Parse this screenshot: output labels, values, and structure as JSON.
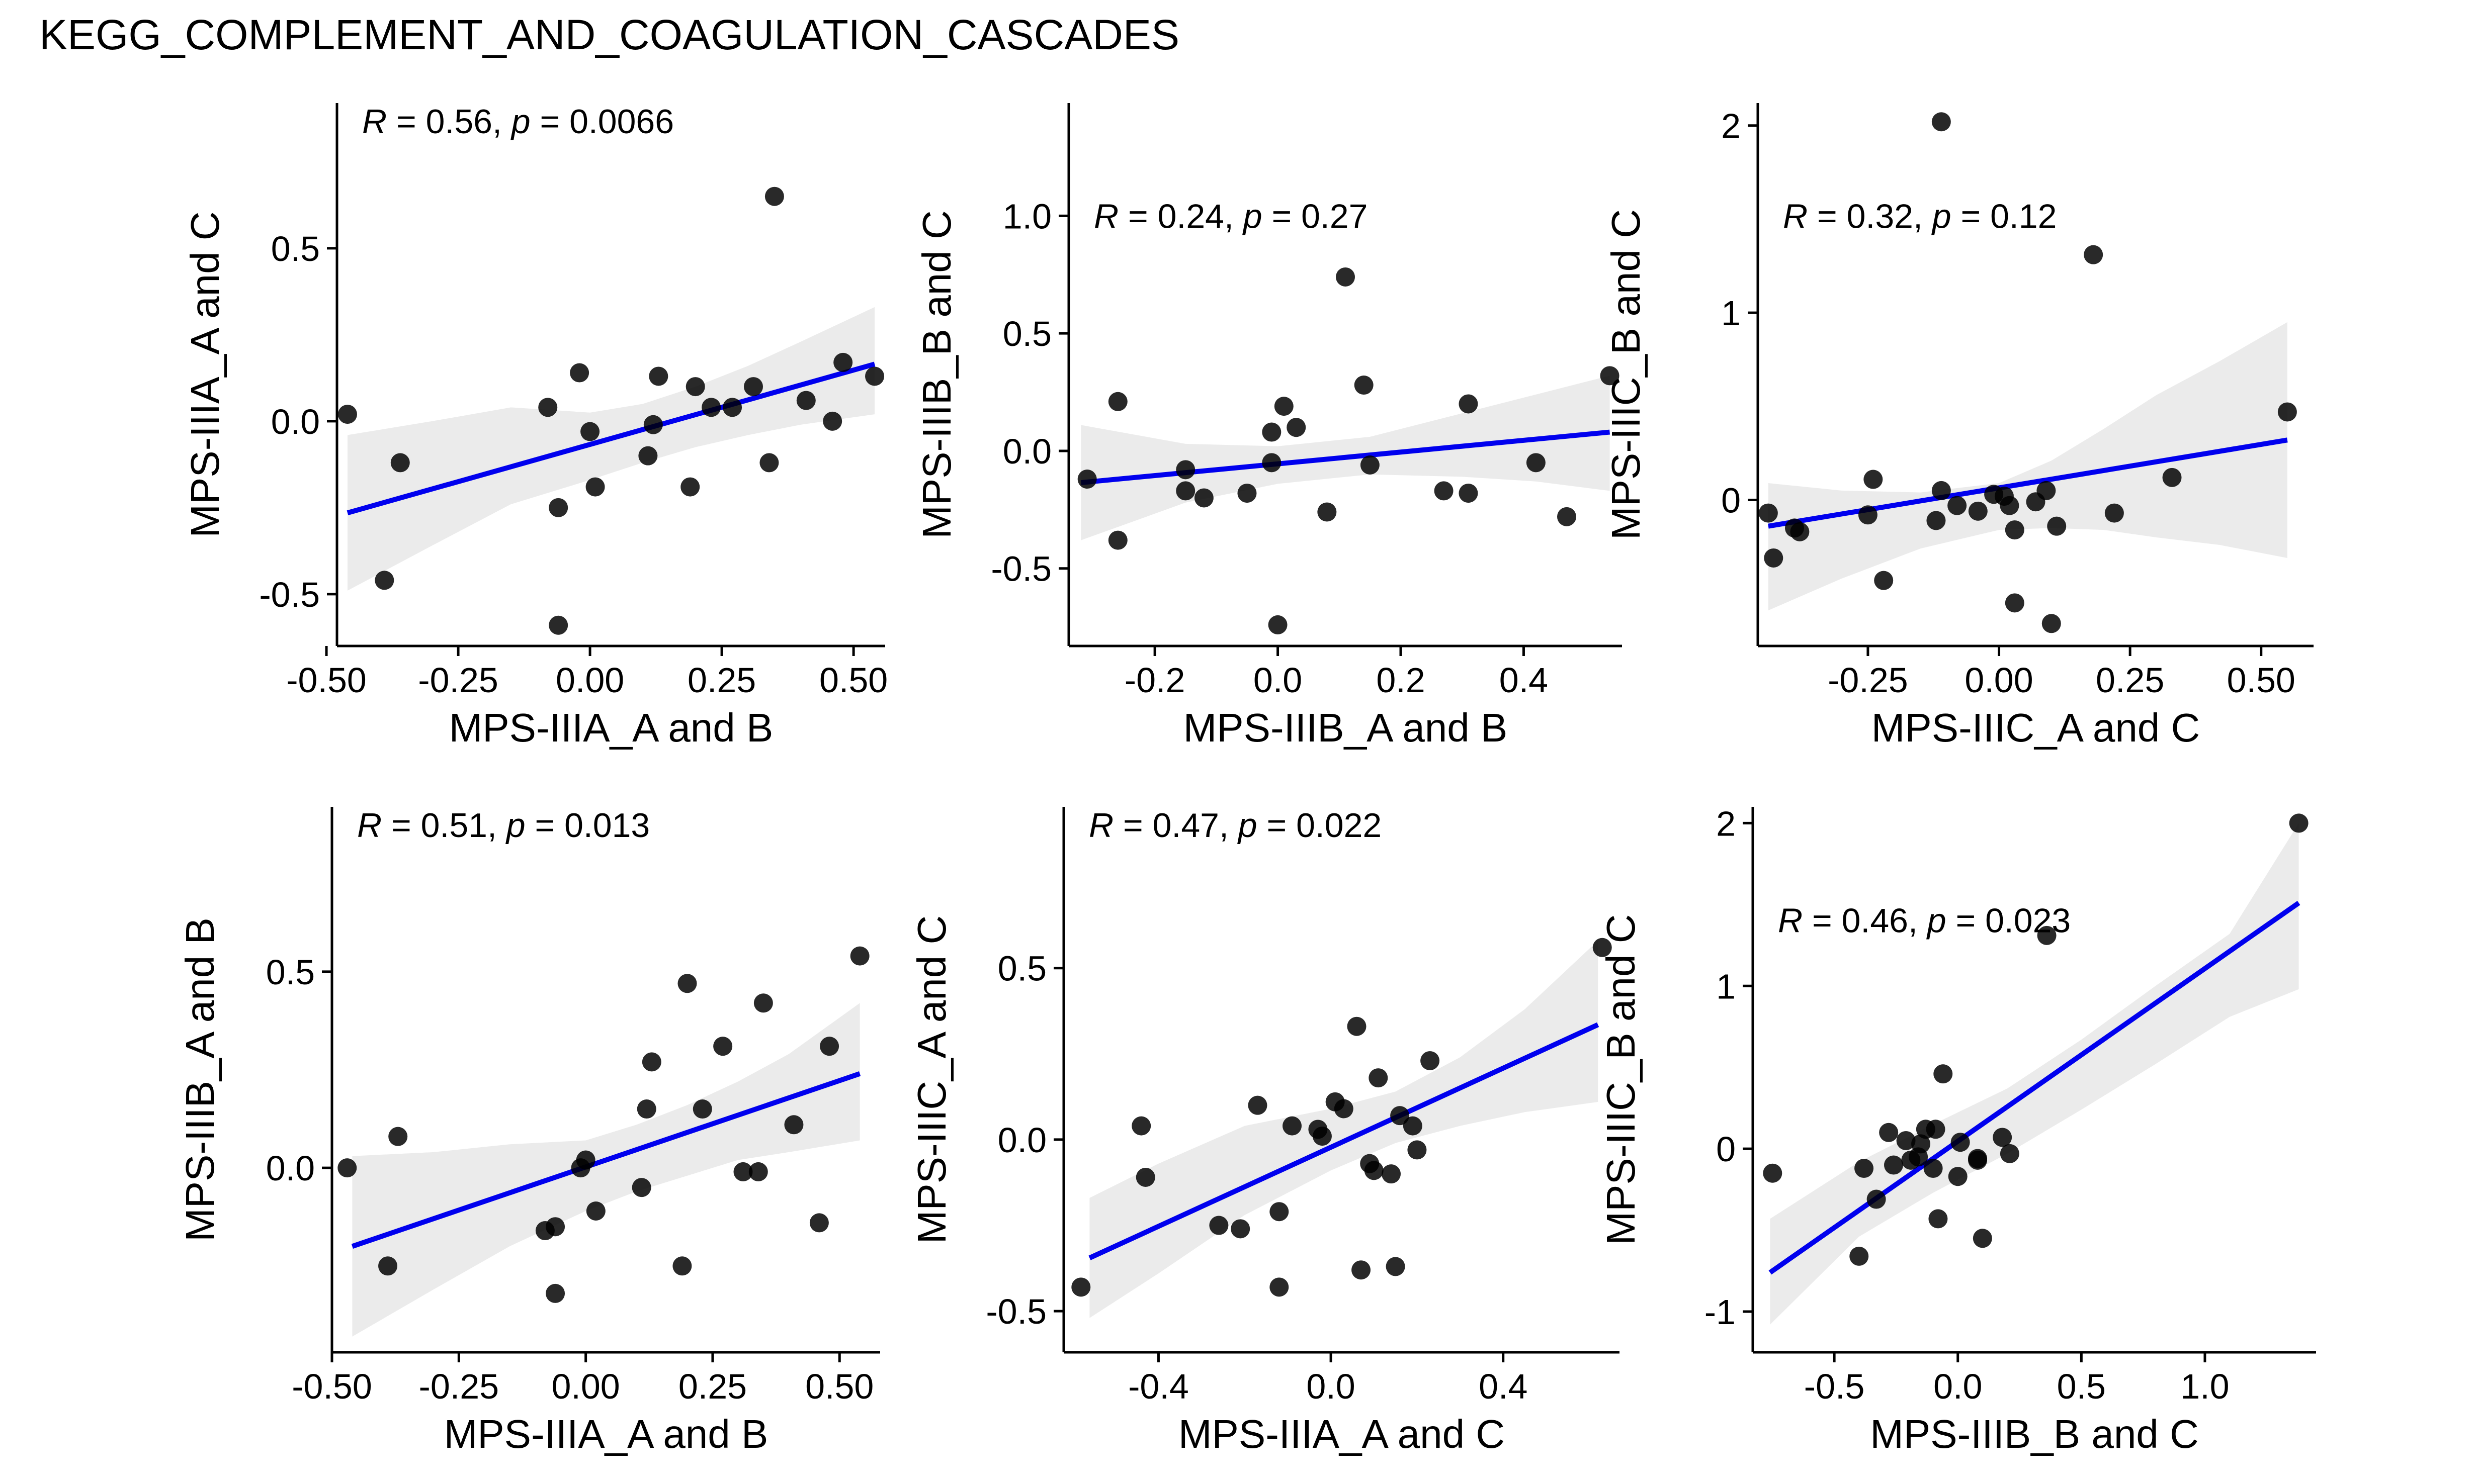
{
  "title": "KEGG_COMPLEMENT_AND_COAGULATION_CASCADES",
  "colors": {
    "fit_line": "#0000ee",
    "band": "#ebebeb",
    "points": "#000000"
  },
  "chart_data": [
    {
      "type": "scatter",
      "xlabel": "MPS-IIIA_A and B",
      "ylabel": "MPS-IIIA_A and C",
      "annotation": {
        "R": "0.56",
        "p": "0.0066"
      },
      "xlim": [
        -0.48,
        0.56
      ],
      "ylim": [
        -0.65,
        0.92
      ],
      "xticks": [
        -0.5,
        -0.25,
        0,
        0.25,
        0.5
      ],
      "xtick_labels": [
        "-0.50",
        "-0.25",
        "0.00",
        "0.25",
        "0.50"
      ],
      "yticks": [
        -0.5,
        0,
        0.5
      ],
      "ytick_labels": [
        "-0.5",
        "0.0",
        "0.5"
      ],
      "points": [
        [
          -0.46,
          0.02
        ],
        [
          -0.39,
          -0.46
        ],
        [
          -0.36,
          -0.12
        ],
        [
          -0.08,
          0.04
        ],
        [
          -0.06,
          -0.25
        ],
        [
          -0.06,
          -0.59
        ],
        [
          -0.02,
          0.14
        ],
        [
          0,
          -0.03
        ],
        [
          0.01,
          -0.19
        ],
        [
          0.11,
          -0.1
        ],
        [
          0.12,
          -0.01
        ],
        [
          0.13,
          0.13
        ],
        [
          0.19,
          -0.19
        ],
        [
          0.2,
          0.1
        ],
        [
          0.23,
          0.04
        ],
        [
          0.27,
          0.04
        ],
        [
          0.31,
          0.1
        ],
        [
          0.34,
          -0.12
        ],
        [
          0.35,
          0.65
        ],
        [
          0.41,
          0.06
        ],
        [
          0.46,
          0
        ],
        [
          0.48,
          0.17
        ],
        [
          0.54,
          0.13
        ]
      ],
      "fit": [
        [
          -0.46,
          -0.265
        ],
        [
          0.54,
          0.165
        ]
      ],
      "band_upper": [
        [
          -0.46,
          -0.04
        ],
        [
          -0.3,
          0.0
        ],
        [
          -0.15,
          0.04
        ],
        [
          0,
          0.025
        ],
        [
          0.1,
          0.05
        ],
        [
          0.2,
          0.1
        ],
        [
          0.3,
          0.16
        ],
        [
          0.4,
          0.23
        ],
        [
          0.54,
          0.33
        ]
      ],
      "band_lower": [
        [
          -0.46,
          -0.49
        ],
        [
          -0.3,
          -0.36
        ],
        [
          -0.15,
          -0.24
        ],
        [
          0,
          -0.17
        ],
        [
          0.1,
          -0.12
        ],
        [
          0.2,
          -0.075
        ],
        [
          0.3,
          -0.04
        ],
        [
          0.4,
          -0.01
        ],
        [
          0.54,
          0.02
        ]
      ],
      "annot_pos": "top-left"
    },
    {
      "type": "scatter",
      "xlabel": "MPS-IIIB_A and B",
      "ylabel": "MPS-IIIB_B and C",
      "annotation": {
        "R": "0.24",
        "p": "0.27"
      },
      "xlim": [
        -0.34,
        0.56
      ],
      "ylim": [
        -0.83,
        1.48
      ],
      "xticks": [
        -0.2,
        0,
        0.2,
        0.4
      ],
      "xtick_labels": [
        "-0.2",
        "0.0",
        "0.2",
        "0.4"
      ],
      "yticks": [
        -0.5,
        0,
        0.5,
        1.0
      ],
      "ytick_labels": [
        "-0.5",
        "0.0",
        "0.5",
        "1.0"
      ],
      "points": [
        [
          -0.31,
          -0.12
        ],
        [
          -0.26,
          0.21
        ],
        [
          -0.26,
          -0.38
        ],
        [
          -0.15,
          -0.08
        ],
        [
          -0.15,
          -0.17
        ],
        [
          -0.12,
          -0.2
        ],
        [
          -0.05,
          -0.18
        ],
        [
          -0.01,
          0.08
        ],
        [
          -0.01,
          -0.05
        ],
        [
          0,
          -0.74
        ],
        [
          0.01,
          0.19
        ],
        [
          0.03,
          0.1
        ],
        [
          0.08,
          -0.26
        ],
        [
          0.11,
          0.74
        ],
        [
          0.14,
          0.28
        ],
        [
          0.15,
          -0.06
        ],
        [
          0.27,
          -0.17
        ],
        [
          0.31,
          0.2
        ],
        [
          0.31,
          -0.18
        ],
        [
          0.42,
          -0.05
        ],
        [
          0.47,
          -0.28
        ],
        [
          0.54,
          0.32
        ]
      ],
      "fit": [
        [
          -0.32,
          -0.135
        ],
        [
          0.54,
          0.08
        ]
      ],
      "band_upper": [
        [
          -0.32,
          0.11
        ],
        [
          -0.15,
          0.03
        ],
        [
          0,
          0.02
        ],
        [
          0.15,
          0.06
        ],
        [
          0.3,
          0.16
        ],
        [
          0.42,
          0.24
        ],
        [
          0.54,
          0.32
        ]
      ],
      "band_lower": [
        [
          -0.32,
          -0.38
        ],
        [
          -0.15,
          -0.22
        ],
        [
          0,
          -0.14
        ],
        [
          0.15,
          -0.1
        ],
        [
          0.3,
          -0.11
        ],
        [
          0.42,
          -0.13
        ],
        [
          0.54,
          -0.17
        ]
      ],
      "annot_pos": "upper-left"
    },
    {
      "type": "scatter",
      "xlabel": "MPS-IIIC_A and C",
      "ylabel": "MPS-IIIC_B and C",
      "annotation": {
        "R": "0.32",
        "p": "0.12"
      },
      "xlim": [
        -0.46,
        0.6
      ],
      "ylim": [
        -0.78,
        2.12
      ],
      "xticks": [
        -0.25,
        0,
        0.25,
        0.5
      ],
      "xtick_labels": [
        "-0.25",
        "0.00",
        "0.25",
        "0.50"
      ],
      "yticks": [
        0,
        1,
        2
      ],
      "ytick_labels": [
        "0",
        "1",
        "2"
      ],
      "points": [
        [
          -0.44,
          -0.07
        ],
        [
          -0.43,
          -0.31
        ],
        [
          -0.39,
          -0.15
        ],
        [
          -0.38,
          -0.17
        ],
        [
          -0.25,
          -0.08
        ],
        [
          -0.24,
          0.11
        ],
        [
          -0.22,
          -0.43
        ],
        [
          -0.12,
          -0.11
        ],
        [
          -0.11,
          2.02
        ],
        [
          -0.11,
          0.05
        ],
        [
          -0.08,
          -0.03
        ],
        [
          -0.04,
          -0.06
        ],
        [
          -0.01,
          0.03
        ],
        [
          0.01,
          0.02
        ],
        [
          0.02,
          -0.03
        ],
        [
          0.03,
          -0.55
        ],
        [
          0.03,
          -0.16
        ],
        [
          0.07,
          -0.01
        ],
        [
          0.09,
          0.05
        ],
        [
          0.1,
          -0.66
        ],
        [
          0.11,
          -0.14
        ],
        [
          0.18,
          1.31
        ],
        [
          0.22,
          -0.07
        ],
        [
          0.33,
          0.12
        ],
        [
          0.55,
          0.47
        ]
      ],
      "fit": [
        [
          -0.44,
          -0.14
        ],
        [
          0.55,
          0.32
        ]
      ],
      "band_upper": [
        [
          -0.44,
          0.09
        ],
        [
          -0.3,
          0.05
        ],
        [
          -0.15,
          0.04
        ],
        [
          0,
          0.09
        ],
        [
          0.1,
          0.21
        ],
        [
          0.2,
          0.38
        ],
        [
          0.3,
          0.56
        ],
        [
          0.42,
          0.74
        ],
        [
          0.55,
          0.95
        ]
      ],
      "band_lower": [
        [
          -0.44,
          -0.59
        ],
        [
          -0.3,
          -0.42
        ],
        [
          -0.15,
          -0.26
        ],
        [
          0,
          -0.16
        ],
        [
          0.1,
          -0.15
        ],
        [
          0.2,
          -0.16
        ],
        [
          0.3,
          -0.2
        ],
        [
          0.42,
          -0.24
        ],
        [
          0.55,
          -0.31
        ]
      ],
      "annot_pos": "upper-left"
    },
    {
      "type": "scatter",
      "xlabel": "MPS-IIIA_A and B",
      "ylabel": "MPS-IIIB_A and B",
      "annotation": {
        "R": "0.51",
        "p": "0.013"
      },
      "xlim": [
        -0.5,
        0.58
      ],
      "ylim": [
        -0.47,
        0.92
      ],
      "xticks": [
        -0.5,
        -0.25,
        0,
        0.25,
        0.5
      ],
      "xtick_labels": [
        "-0.50",
        "-0.25",
        "0.00",
        "0.25",
        "0.50"
      ],
      "yticks": [
        0,
        0.5
      ],
      "ytick_labels": [
        "0.0",
        "0.5"
      ],
      "points": [
        [
          -0.47,
          0
        ],
        [
          -0.39,
          -0.25
        ],
        [
          -0.37,
          0.08
        ],
        [
          -0.08,
          -0.16
        ],
        [
          -0.06,
          -0.15
        ],
        [
          -0.06,
          -0.32
        ],
        [
          -0.01,
          0
        ],
        [
          0,
          0.02
        ],
        [
          0.02,
          -0.11
        ],
        [
          0.11,
          -0.05
        ],
        [
          0.12,
          0.15
        ],
        [
          0.13,
          0.27
        ],
        [
          0.19,
          -0.25
        ],
        [
          0.2,
          0.47
        ],
        [
          0.23,
          0.15
        ],
        [
          0.27,
          0.31
        ],
        [
          0.31,
          -0.01
        ],
        [
          0.34,
          -0.01
        ],
        [
          0.35,
          0.42
        ],
        [
          0.41,
          0.11
        ],
        [
          0.46,
          -0.14
        ],
        [
          0.48,
          0.31
        ],
        [
          0.54,
          0.54
        ]
      ],
      "fit": [
        [
          -0.46,
          -0.2
        ],
        [
          0.54,
          0.24
        ]
      ],
      "band_upper": [
        [
          -0.46,
          0.03
        ],
        [
          -0.3,
          0.04
        ],
        [
          -0.15,
          0.06
        ],
        [
          0,
          0.07
        ],
        [
          0.1,
          0.11
        ],
        [
          0.2,
          0.16
        ],
        [
          0.3,
          0.22
        ],
        [
          0.4,
          0.29
        ],
        [
          0.54,
          0.42
        ]
      ],
      "band_lower": [
        [
          -0.46,
          -0.43
        ],
        [
          -0.3,
          -0.31
        ],
        [
          -0.15,
          -0.2
        ],
        [
          0,
          -0.11
        ],
        [
          0.1,
          -0.06
        ],
        [
          0.2,
          -0.02
        ],
        [
          0.3,
          0.02
        ],
        [
          0.4,
          0.04
        ],
        [
          0.54,
          0.07
        ]
      ],
      "annot_pos": "top-left"
    },
    {
      "type": "scatter",
      "xlabel": "MPS-IIIA_A and C",
      "ylabel": "MPS-IIIC_A and C",
      "annotation": {
        "R": "0.47",
        "p": "0.022"
      },
      "xlim": [
        -0.62,
        0.67
      ],
      "ylim": [
        -0.62,
        0.97
      ],
      "xticks": [
        -0.4,
        0,
        0.4
      ],
      "xtick_labels": [
        "-0.4",
        "0.0",
        "0.4"
      ],
      "yticks": [
        -0.5,
        0,
        0.5
      ],
      "ytick_labels": [
        "-0.5",
        "0.0",
        "0.5"
      ],
      "points": [
        [
          -0.58,
          -0.43
        ],
        [
          -0.44,
          0.04
        ],
        [
          -0.43,
          -0.11
        ],
        [
          -0.26,
          -0.25
        ],
        [
          -0.21,
          -0.26
        ],
        [
          -0.17,
          0.1
        ],
        [
          -0.12,
          -0.43
        ],
        [
          -0.12,
          -0.21
        ],
        [
          -0.09,
          0.04
        ],
        [
          -0.03,
          0.03
        ],
        [
          -0.02,
          0.01
        ],
        [
          0.01,
          0.11
        ],
        [
          0.03,
          0.09
        ],
        [
          0.06,
          0.33
        ],
        [
          0.07,
          -0.38
        ],
        [
          0.09,
          -0.07
        ],
        [
          0.1,
          -0.09
        ],
        [
          0.11,
          0.18
        ],
        [
          0.14,
          -0.1
        ],
        [
          0.15,
          -0.37
        ],
        [
          0.16,
          0.07
        ],
        [
          0.19,
          0.04
        ],
        [
          0.2,
          -0.03
        ],
        [
          0.23,
          0.23
        ],
        [
          0.63,
          0.56
        ]
      ],
      "fit": [
        [
          -0.56,
          -0.345
        ],
        [
          0.62,
          0.335
        ]
      ],
      "band_upper": [
        [
          -0.56,
          -0.17
        ],
        [
          -0.4,
          -0.07
        ],
        [
          -0.2,
          0.04
        ],
        [
          0,
          0.09
        ],
        [
          0.15,
          0.14
        ],
        [
          0.3,
          0.24
        ],
        [
          0.45,
          0.38
        ],
        [
          0.62,
          0.58
        ]
      ],
      "band_lower": [
        [
          -0.56,
          -0.52
        ],
        [
          -0.4,
          -0.39
        ],
        [
          -0.2,
          -0.22
        ],
        [
          0,
          -0.09
        ],
        [
          0.15,
          -0.01
        ],
        [
          0.3,
          0.04
        ],
        [
          0.45,
          0.08
        ],
        [
          0.62,
          0.11
        ]
      ],
      "annot_pos": "top-left"
    },
    {
      "type": "scatter",
      "xlabel": "MPS-IIIB_B and C",
      "ylabel": "MPS-IIIC_B and C",
      "annotation": {
        "R": "0.46",
        "p": "0.023"
      },
      "xlim": [
        -0.83,
        1.45
      ],
      "ylim": [
        -1.25,
        2.1
      ],
      "xticks": [
        -0.5,
        0,
        0.5,
        1.0
      ],
      "xtick_labels": [
        "-0.5",
        "0.0",
        "0.5",
        "1.0"
      ],
      "yticks": [
        -1,
        0,
        1,
        2
      ],
      "ytick_labels": [
        "-1",
        "0",
        "1",
        "2"
      ],
      "points": [
        [
          -0.75,
          -0.15
        ],
        [
          -0.4,
          -0.66
        ],
        [
          -0.38,
          -0.12
        ],
        [
          -0.33,
          -0.31
        ],
        [
          -0.28,
          0.1
        ],
        [
          -0.26,
          -0.1
        ],
        [
          -0.21,
          0.05
        ],
        [
          -0.19,
          -0.07
        ],
        [
          -0.16,
          -0.05
        ],
        [
          -0.15,
          0.03
        ],
        [
          -0.13,
          0.12
        ],
        [
          -0.1,
          -0.12
        ],
        [
          -0.09,
          0.12
        ],
        [
          -0.08,
          -0.43
        ],
        [
          -0.06,
          0.46
        ],
        [
          0,
          -0.17
        ],
        [
          0.01,
          0.04
        ],
        [
          0.08,
          -0.07
        ],
        [
          0.08,
          -0.06
        ],
        [
          0.1,
          -0.55
        ],
        [
          0.18,
          0.07
        ],
        [
          0.21,
          -0.03
        ],
        [
          0.36,
          1.31
        ],
        [
          1.38,
          2.0
        ]
      ],
      "fit": [
        [
          -0.76,
          -0.76
        ],
        [
          1.38,
          1.51
        ]
      ],
      "band_upper": [
        [
          -0.76,
          -0.43
        ],
        [
          -0.4,
          -0.08
        ],
        [
          -0.1,
          0.15
        ],
        [
          0.2,
          0.37
        ],
        [
          0.5,
          0.67
        ],
        [
          0.8,
          1.0
        ],
        [
          1.1,
          1.32
        ],
        [
          1.38,
          2.0
        ]
      ],
      "band_lower": [
        [
          -0.76,
          -1.08
        ],
        [
          -0.4,
          -0.54
        ],
        [
          -0.1,
          -0.27
        ],
        [
          0.2,
          -0.03
        ],
        [
          0.5,
          0.24
        ],
        [
          0.8,
          0.52
        ],
        [
          1.1,
          0.81
        ],
        [
          1.38,
          0.98
        ]
      ],
      "annot_pos": "upper-left"
    }
  ]
}
